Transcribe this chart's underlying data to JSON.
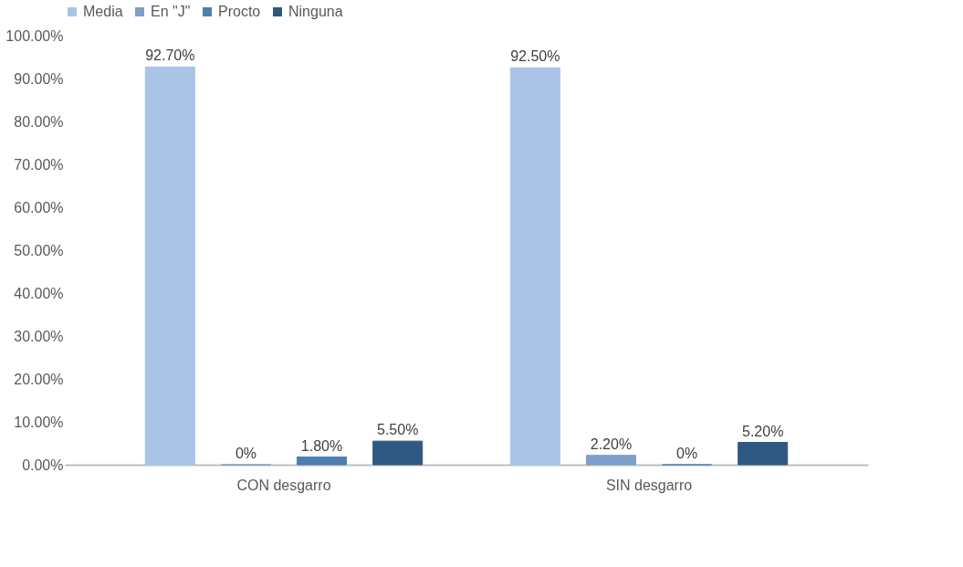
{
  "chart_data": {
    "type": "bar",
    "categories": [
      "CON desgarro",
      "SIN desgarro"
    ],
    "series": [
      {
        "name": "Media",
        "color": "#a9c4e6",
        "values": [
          92.7,
          92.5
        ],
        "value_labels": [
          "92.70%",
          "92.50%"
        ]
      },
      {
        "name": "En \"J\"",
        "color": "#7f9fcb",
        "values": [
          0,
          2.2
        ],
        "value_labels": [
          "0%",
          "2.20%"
        ]
      },
      {
        "name": "Procto",
        "color": "#4f7eb0",
        "values": [
          1.8,
          0
        ],
        "value_labels": [
          "1.80%",
          "0%"
        ]
      },
      {
        "name": "Ninguna",
        "color": "#2f5882",
        "values": [
          5.5,
          5.2
        ],
        "value_labels": [
          "5.50%",
          "5.20%"
        ]
      }
    ],
    "ylim": [
      0,
      100
    ],
    "yticks": [
      {
        "value": 0,
        "label": "0.00%"
      },
      {
        "value": 10,
        "label": "10.00%"
      },
      {
        "value": 20,
        "label": "20.00%"
      },
      {
        "value": 30,
        "label": "30.00%"
      },
      {
        "value": 40,
        "label": "40.00%"
      },
      {
        "value": 50,
        "label": "50.00%"
      },
      {
        "value": 60,
        "label": "60.00%"
      },
      {
        "value": 70,
        "label": "70.00%"
      },
      {
        "value": 80,
        "label": "80.00%"
      },
      {
        "value": 90,
        "label": "90.00%"
      },
      {
        "value": 100,
        "label": "100.00%"
      }
    ],
    "grid": false,
    "legend": "top"
  }
}
